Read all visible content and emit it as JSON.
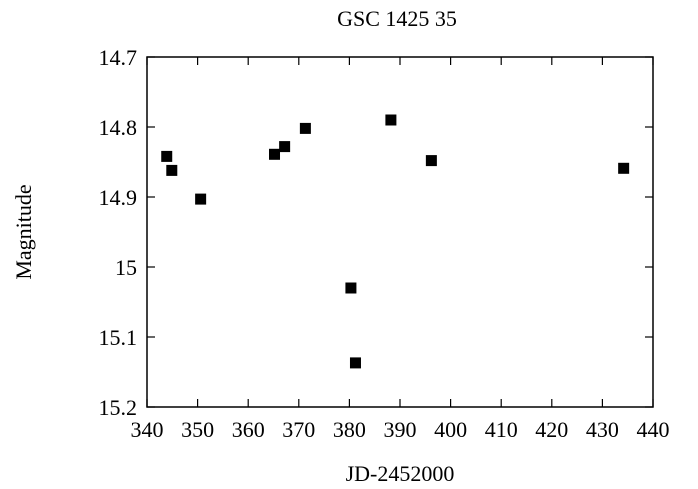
{
  "chart_data": {
    "type": "scatter",
    "title": "GSC 1425 35",
    "xlabel": "JD-2452000",
    "ylabel": "Magnitude",
    "xlim": [
      340,
      440
    ],
    "ylim": [
      14.7,
      15.2
    ],
    "y_inverted": true,
    "grid": false,
    "marker": "square",
    "marker_color": "#000000",
    "xticks": [
      "340",
      "350",
      "360",
      "370",
      "380",
      "390",
      "400",
      "410",
      "420",
      "430",
      "440"
    ],
    "yticks": [
      "14.7",
      "14.8",
      "14.9",
      "15",
      "15.1",
      "15.2"
    ],
    "points": [
      {
        "x": 343.9,
        "y": 14.842
      },
      {
        "x": 344.9,
        "y": 14.862
      },
      {
        "x": 350.6,
        "y": 14.903
      },
      {
        "x": 365.2,
        "y": 14.839
      },
      {
        "x": 367.2,
        "y": 14.828
      },
      {
        "x": 371.3,
        "y": 14.802
      },
      {
        "x": 380.3,
        "y": 15.03
      },
      {
        "x": 381.2,
        "y": 15.137
      },
      {
        "x": 388.2,
        "y": 14.79
      },
      {
        "x": 396.2,
        "y": 14.848
      },
      {
        "x": 434.2,
        "y": 14.859
      }
    ]
  }
}
